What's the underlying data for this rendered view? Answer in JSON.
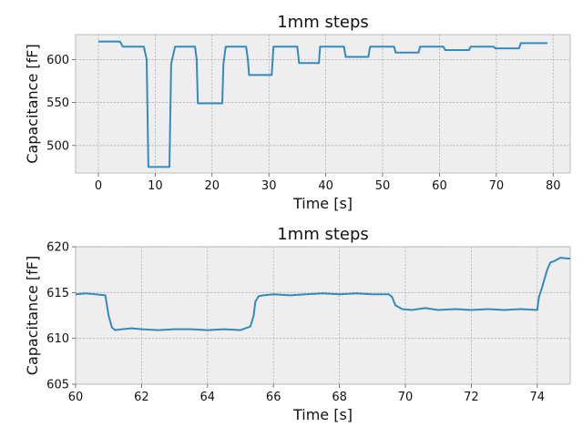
{
  "colors": {
    "series": "#348abd",
    "axes_bg": "#eeeeee"
  },
  "chart_data": [
    {
      "type": "line",
      "title": "1mm steps",
      "xlabel": "Time [s]",
      "ylabel": "Capacitance [fF]",
      "xlim": [
        -4,
        83
      ],
      "ylim": [
        468,
        629
      ],
      "xticks": [
        0,
        10,
        20,
        30,
        40,
        50,
        60,
        70,
        80
      ],
      "yticks": [
        500,
        550,
        600
      ],
      "grid": true,
      "series": [
        {
          "x": [
            0,
            3.8,
            4.3,
            8.0,
            8.5,
            8.8,
            12.5,
            12.8,
            13.5,
            17.0,
            17.3,
            17.5,
            21.8,
            22.0,
            22.4,
            26.0,
            26.3,
            26.5,
            30.5,
            30.8,
            31.0,
            35.0,
            35.3,
            38.8,
            39.0,
            43.2,
            43.5,
            47.5,
            47.8,
            52.0,
            52.3,
            56.3,
            56.6,
            60.7,
            61.0,
            65.2,
            65.5,
            69.5,
            69.8,
            74.0,
            74.3,
            79.0
          ],
          "values": [
            621,
            621,
            615,
            615,
            600,
            475,
            475,
            595,
            615,
            615,
            600,
            549,
            549,
            595,
            615,
            615,
            600,
            582,
            582,
            615,
            615,
            615,
            596,
            596,
            615,
            615,
            603,
            603,
            615,
            615,
            608,
            608,
            615,
            615,
            611,
            611,
            615,
            615,
            613,
            613,
            619,
            619
          ]
        }
      ]
    },
    {
      "type": "line",
      "title": "1mm steps",
      "xlabel": "Time [s]",
      "ylabel": "Capacitance [fF]",
      "xlim": [
        60,
        75
      ],
      "ylim": [
        605,
        620
      ],
      "xticks": [
        60,
        62,
        64,
        66,
        68,
        70,
        72,
        74
      ],
      "yticks": [
        605,
        610,
        615,
        620
      ],
      "grid": true,
      "series": [
        {
          "x": [
            60.0,
            60.3,
            60.6,
            60.9,
            61.0,
            61.1,
            61.2,
            61.4,
            61.7,
            62.0,
            62.5,
            63.0,
            63.5,
            64.0,
            64.5,
            65.0,
            65.3,
            65.4,
            65.45,
            65.55,
            65.7,
            66.0,
            66.5,
            67.0,
            67.5,
            68.0,
            68.5,
            69.0,
            69.5,
            69.6,
            69.7,
            69.9,
            70.2,
            70.6,
            71.0,
            71.5,
            72.0,
            72.5,
            73.0,
            73.5,
            74.0,
            74.05,
            74.15,
            74.3,
            74.4,
            74.5,
            74.7,
            75.0
          ],
          "values": [
            614.8,
            614.9,
            614.8,
            614.7,
            612.5,
            611.2,
            610.9,
            611.0,
            611.1,
            611.0,
            610.9,
            611.0,
            611.0,
            610.9,
            611.0,
            610.9,
            611.3,
            612.5,
            614.0,
            614.6,
            614.7,
            614.8,
            614.7,
            614.8,
            614.9,
            614.8,
            614.9,
            614.8,
            614.8,
            614.5,
            613.6,
            613.2,
            613.1,
            613.3,
            613.1,
            613.2,
            613.1,
            613.2,
            613.1,
            613.2,
            613.1,
            614.5,
            615.6,
            617.5,
            618.3,
            618.4,
            618.8,
            618.7
          ]
        }
      ]
    }
  ]
}
